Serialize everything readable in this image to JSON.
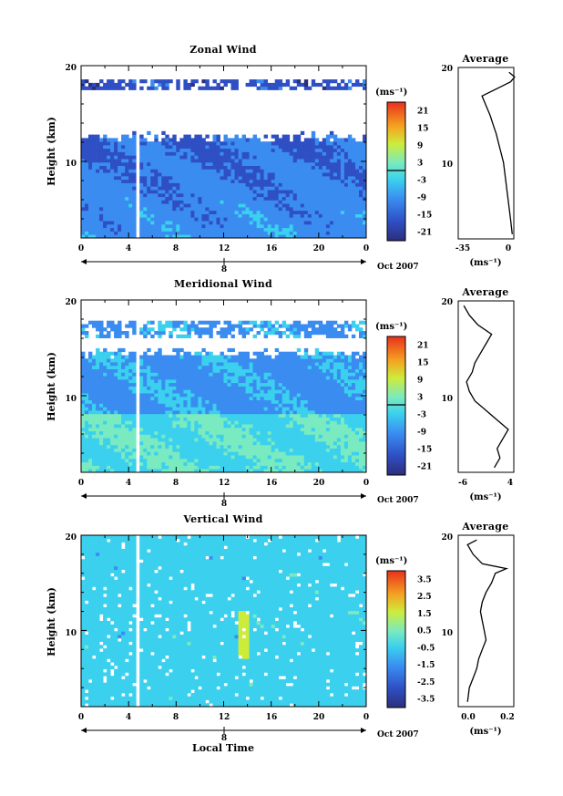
{
  "figure": {
    "time_label": "Local Time",
    "date_label": "Oct 2007",
    "day_label": "8"
  },
  "chart_data": [
    {
      "id": "zonal",
      "type": "heatmap",
      "title": "Zonal Wind",
      "ylabel": "Height (km)",
      "xlim": [
        0,
        24
      ],
      "ylim": [
        2,
        20
      ],
      "x_ticks": [
        "0",
        "4",
        "8",
        "12",
        "16",
        "20",
        "0"
      ],
      "y_ticks": [
        "10",
        "20"
      ],
      "colorbar": {
        "unit": "(ms⁻¹)",
        "labels": [
          "21",
          "15",
          "9",
          "3",
          "-3",
          "-9",
          "-15",
          "-21"
        ],
        "range": [
          -24,
          24
        ],
        "zero_line": true
      },
      "field": {
        "base": -6,
        "top_gradient": -14,
        "upper_limit_km": 12.5,
        "sparse_layer_km": [
          17.5,
          18.6
        ],
        "gap_hours": [
          4.5,
          5.0
        ],
        "amp": 5
      },
      "profile": {
        "title": "Average",
        "xlabel": "(ms⁻¹)",
        "x_ticks": [
          "-35",
          "0"
        ],
        "xlim": [
          -35,
          0
        ],
        "heights": [
          2.5,
          4,
          6,
          8,
          10,
          11,
          12,
          13,
          14,
          15,
          16,
          17,
          18,
          18.5,
          19,
          19.5
        ],
        "values": [
          -1.0,
          -2.0,
          -3.5,
          -5.0,
          -6.5,
          -8.0,
          -9.5,
          -11.0,
          -13.0,
          -15.0,
          -17.5,
          -20.0,
          -8.0,
          -2.0,
          0.5,
          -3.0
        ]
      }
    },
    {
      "id": "meridional",
      "type": "heatmap",
      "title": "Meridional Wind",
      "ylabel": "Height (km)",
      "xlim": [
        0,
        24
      ],
      "ylim": [
        2,
        20
      ],
      "x_ticks": [
        "0",
        "4",
        "8",
        "12",
        "16",
        "20",
        "0"
      ],
      "y_ticks": [
        "10",
        "20"
      ],
      "colorbar": {
        "unit": "(ms⁻¹)",
        "labels": [
          "21",
          "15",
          "9",
          "3",
          "-3",
          "-9",
          "-15",
          "-21"
        ],
        "range": [
          -24,
          24
        ],
        "zero_line": true
      },
      "field": {
        "base": 0,
        "upper_limit_km": 14.5,
        "sparse_layer_km": [
          16.2,
          17.8
        ],
        "gap_hours": [
          4.5,
          5.0
        ],
        "amp": 5
      },
      "profile": {
        "title": "Average",
        "xlabel": "(ms⁻¹)",
        "x_ticks": [
          "-6",
          "4"
        ],
        "xlim": [
          -6,
          4
        ],
        "heights": [
          2.5,
          3.5,
          4.5,
          5.5,
          6.5,
          7.5,
          8.5,
          9.5,
          10.5,
          11.5,
          12.5,
          13.5,
          14.5,
          15.5,
          16.5,
          17.5,
          18.5,
          19.5
        ],
        "values": [
          0.5,
          1.5,
          1.0,
          2.0,
          3.0,
          1.0,
          -1.0,
          -3.0,
          -4.0,
          -4.5,
          -3.5,
          -3.0,
          -2.0,
          -1.0,
          0.0,
          -2.5,
          -4.0,
          -5.0
        ]
      }
    },
    {
      "id": "vertical",
      "type": "heatmap",
      "title": "Vertical Wind",
      "ylabel": "Height (km)",
      "xlim": [
        0,
        24
      ],
      "ylim": [
        2,
        20
      ],
      "x_ticks": [
        "0",
        "4",
        "8",
        "12",
        "16",
        "20",
        "0"
      ],
      "y_ticks": [
        "10",
        "20"
      ],
      "colorbar": {
        "unit": "(ms⁻¹)",
        "labels": [
          "3.5",
          "2.5",
          "1.5",
          "0.5",
          "-0.5",
          "-1.5",
          "-2.5",
          "-3.5"
        ],
        "range": [
          -4,
          4
        ],
        "zero_line": false
      },
      "field": {
        "base": 0,
        "upper_limit_km": 20,
        "gap_hours": [
          4.5,
          5.0
        ],
        "amp": 0.6
      },
      "profile": {
        "title": "Average",
        "xlabel": "(ms⁻¹)",
        "x_ticks": [
          "0.0",
          "0.2"
        ],
        "xlim": [
          -0.08,
          0.22
        ],
        "heights": [
          2.5,
          4,
          5,
          6,
          7,
          8,
          9,
          10,
          11,
          12,
          13,
          14,
          15,
          16,
          16.5,
          17,
          18,
          19,
          19.5
        ],
        "values": [
          -0.03,
          -0.02,
          0.0,
          0.02,
          0.03,
          0.05,
          0.07,
          0.06,
          0.05,
          0.04,
          0.05,
          0.07,
          0.1,
          0.12,
          0.18,
          0.05,
          0.0,
          -0.03,
          0.02
        ]
      }
    }
  ]
}
